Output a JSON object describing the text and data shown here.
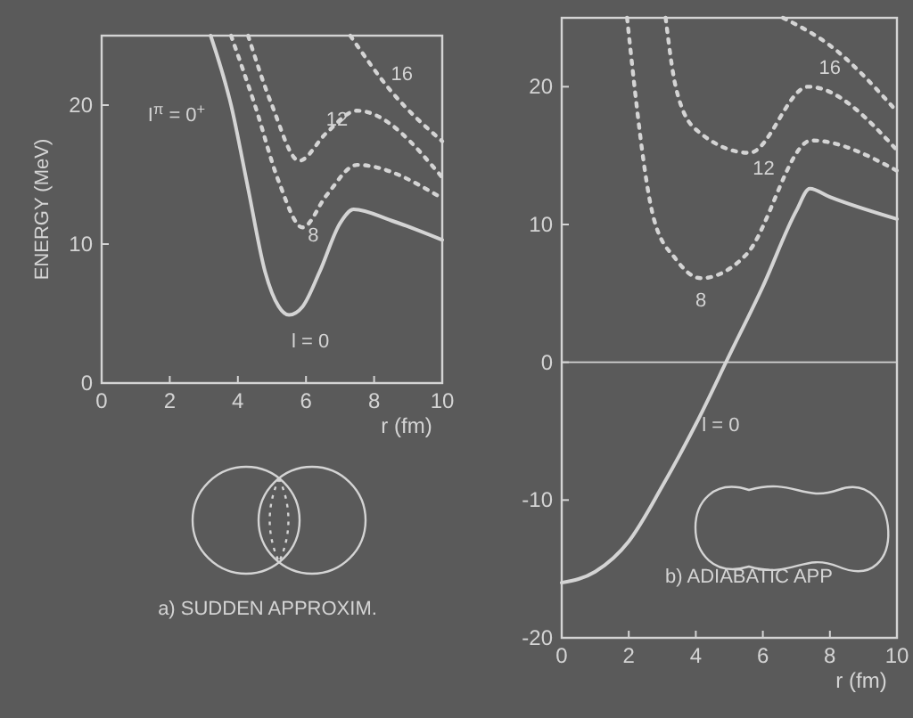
{
  "chart_data": [
    {
      "type": "line",
      "ylabel": "ENERGY (MeV)",
      "xlabel": "r (fm)",
      "xlim": [
        0,
        10
      ],
      "ylim": [
        0,
        25
      ],
      "xticks": [
        0,
        2,
        4,
        6,
        8,
        10
      ],
      "yticks": [
        0,
        10,
        20
      ],
      "grid": false,
      "annotations": [
        "I$^{π}$ = 0$^{+}$",
        "a) SUDDEN APPROXIM."
      ],
      "series": [
        {
          "name": "l = 0",
          "color": "#d4d4d4",
          "line_style": "solid",
          "x": [
            3.2,
            3.8,
            4.3,
            4.8,
            5.2,
            5.5,
            5.9,
            6.4,
            7.0,
            7.4,
            8.5,
            10
          ],
          "values": [
            25,
            20,
            14,
            8,
            5.5,
            4.9,
            5.5,
            8,
            11.5,
            12.5,
            11.7,
            10.3
          ]
        },
        {
          "name": "8",
          "color": "#d4d4d4",
          "line_style": "dotted",
          "x": [
            3.8,
            4.5,
            5.2,
            5.9,
            6.6,
            7.5,
            10
          ],
          "values": [
            25,
            20,
            14.5,
            11.2,
            13.5,
            15.7,
            13.3
          ]
        },
        {
          "name": "12",
          "color": "#d4d4d4",
          "line_style": "dotted",
          "x": [
            4.3,
            5.0,
            5.8,
            6.6,
            7.5,
            10
          ],
          "values": [
            25,
            20,
            16,
            18,
            19.6,
            14.8
          ]
        },
        {
          "name": "16",
          "color": "#d4d4d4",
          "line_style": "dotted",
          "x": [
            7.3,
            8.5,
            10
          ],
          "values": [
            25,
            21,
            17.4
          ]
        }
      ]
    },
    {
      "type": "line",
      "xlabel": "r (fm)",
      "xlim": [
        0,
        10
      ],
      "ylim": [
        -20,
        25
      ],
      "xticks": [
        0,
        2,
        4,
        6,
        8,
        10
      ],
      "yticks": [
        -20,
        -10,
        0,
        10,
        20
      ],
      "grid": false,
      "ref_lines": [
        {
          "axis": "y",
          "value": 0
        }
      ],
      "annotations": [
        "b) ADIABATIC APP"
      ],
      "series": [
        {
          "name": "l = 0",
          "color": "#d4d4d4",
          "line_style": "solid",
          "x": [
            0,
            1,
            2,
            3,
            4,
            5,
            6,
            7,
            7.4,
            8,
            10
          ],
          "values": [
            -16,
            -15.2,
            -13,
            -9,
            -4.5,
            0.5,
            5.5,
            11,
            12.6,
            12,
            10.4
          ]
        },
        {
          "name": "8",
          "color": "#d4d4d4",
          "line_style": "dotted",
          "x": [
            1.95,
            2.75,
            3.4,
            4.15,
            5.5,
            7.45,
            10
          ],
          "values": [
            25,
            10.4,
            7.5,
            6.1,
            7.8,
            16.1,
            13.9
          ]
        },
        {
          "name": "12",
          "color": "#d4d4d4",
          "line_style": "dotted",
          "x": [
            3.1,
            3.4,
            4.0,
            5.6,
            7.35,
            10
          ],
          "values": [
            25,
            20,
            16.9,
            15.2,
            20,
            15.4
          ]
        },
        {
          "name": "16",
          "color": "#d4d4d4",
          "line_style": "dotted",
          "x": [
            6.6,
            8,
            10
          ],
          "values": [
            25,
            23,
            18.2
          ]
        }
      ]
    }
  ]
}
